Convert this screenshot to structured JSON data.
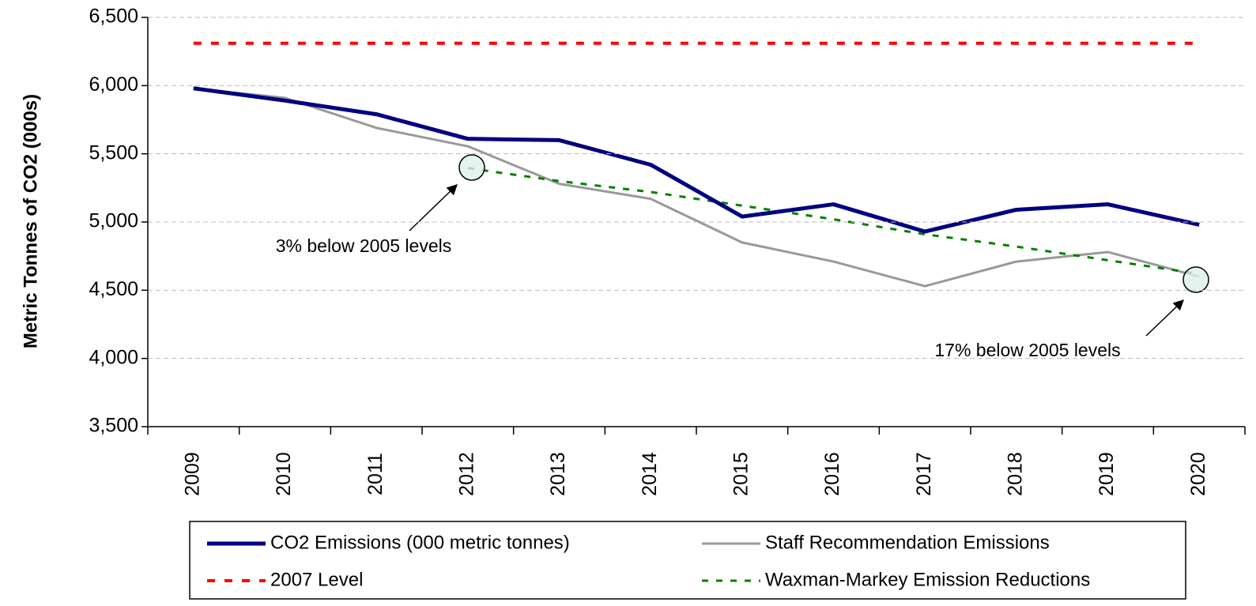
{
  "chart_data": {
    "type": "line",
    "ylabel": "Metric Tonnes of CO2 (000s)",
    "categories": [
      "2009",
      "2010",
      "2011",
      "2012",
      "2013",
      "2014",
      "2015",
      "2016",
      "2017",
      "2018",
      "2019",
      "2020"
    ],
    "series": [
      {
        "name": "CO2 Emissions  (000 metric tonnes)",
        "color": "#000080",
        "style": "solid",
        "width": 5,
        "values": [
          5980,
          5890,
          5790,
          5610,
          5600,
          5420,
          5040,
          5130,
          4930,
          5090,
          5130,
          4980
        ]
      },
      {
        "name": "Staff Recommendation Emissions",
        "color": "#999999",
        "style": "solid",
        "width": 3,
        "values": [
          5980,
          5910,
          5690,
          5555,
          5280,
          5170,
          4850,
          4710,
          4530,
          4710,
          4780,
          4600
        ]
      },
      {
        "name": "2007 Level",
        "color": "#ff0000",
        "style": "dashed",
        "width": 4,
        "values": [
          6310,
          6310,
          6310,
          6310,
          6310,
          6310,
          6310,
          6310,
          6310,
          6310,
          6310,
          6310
        ]
      },
      {
        "name": "Waxman-Markey Emission Reductions",
        "color": "#008000",
        "style": "dashed",
        "width": 3,
        "values": [
          null,
          null,
          null,
          5395,
          5300,
          5220,
          5120,
          5020,
          4910,
          4820,
          4720,
          4620
        ]
      }
    ],
    "annotations": [
      "3% below 2005 levels",
      "17% below 2005 levels"
    ],
    "ylim": [
      3500,
      6500
    ],
    "yticks": [
      {
        "value": 3500,
        "label": "3,500"
      },
      {
        "value": 4000,
        "label": "4,000"
      },
      {
        "value": 4500,
        "label": "4,500"
      },
      {
        "value": 5000,
        "label": "5,000"
      },
      {
        "value": 5500,
        "label": "5,500"
      },
      {
        "value": 6000,
        "label": "6,000"
      },
      {
        "value": 6500,
        "label": "6,500"
      }
    ],
    "grid": true
  }
}
